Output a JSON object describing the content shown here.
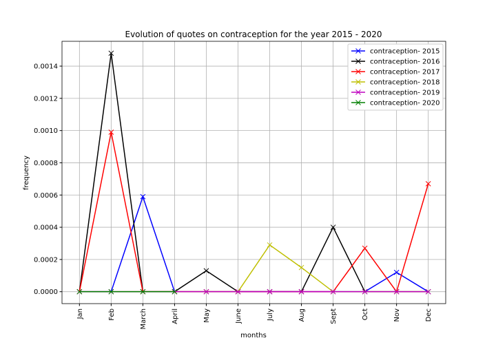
{
  "chart_data": {
    "type": "line",
    "title": "Evolution of quotes on contraception for the year 2015 - 2020",
    "x_label": "months",
    "y_label": "frequency",
    "categories": [
      "Jan",
      "Feb",
      "March",
      "April",
      "May",
      "June",
      "July",
      "Aug",
      "Sept",
      "Oct",
      "Nov",
      "Dec"
    ],
    "series": [
      {
        "name": "contraception- 2015",
        "color": "#0000ff",
        "values": [
          0,
          0,
          0.00059,
          0,
          0,
          0,
          0,
          0,
          0,
          0,
          0.00012,
          0
        ]
      },
      {
        "name": "contraception- 2016",
        "color": "#000000",
        "values": [
          0,
          0.00148,
          0,
          0,
          0.00013,
          0,
          0,
          0,
          0.0004,
          0,
          0,
          0
        ]
      },
      {
        "name": "contraception- 2017",
        "color": "#ff0000",
        "values": [
          0,
          0.00099,
          0,
          0,
          0,
          0,
          0,
          0,
          0,
          0.00027,
          0,
          0.00067
        ]
      },
      {
        "name": "contraception- 2018",
        "color": "#bfbf00",
        "values": [
          0,
          0,
          0,
          0,
          0,
          0,
          0.00029,
          0.00015,
          0,
          0,
          0,
          0
        ]
      },
      {
        "name": "contraception- 2019",
        "color": "#bf00bf",
        "values": [
          0,
          0,
          0,
          0,
          0,
          0,
          0,
          0,
          0,
          0,
          0,
          0
        ]
      },
      {
        "name": "contraception- 2020",
        "color": "#008000",
        "values": [
          0,
          0,
          0,
          0,
          null,
          null,
          null,
          null,
          null,
          null,
          null,
          null
        ]
      }
    ],
    "ylim": [
      -7.4e-05,
      0.001554
    ],
    "yticks": [
      {
        "value": 0,
        "label": "0.0000"
      },
      {
        "value": 0.0002,
        "label": "0.0002"
      },
      {
        "value": 0.0004,
        "label": "0.0004"
      },
      {
        "value": 0.0006,
        "label": "0.0006"
      },
      {
        "value": 0.0008,
        "label": "0.0008"
      },
      {
        "value": 0.001,
        "label": "0.0010"
      },
      {
        "value": 0.0012,
        "label": "0.0012"
      },
      {
        "value": 0.0014,
        "label": "0.0014"
      }
    ],
    "grid": true,
    "legend": "upper right",
    "marker": "x"
  }
}
